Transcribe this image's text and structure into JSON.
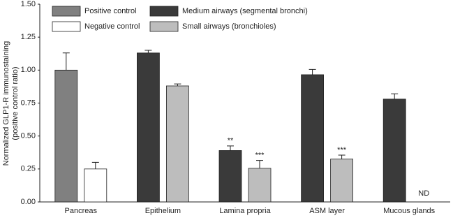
{
  "chart_data": {
    "type": "bar",
    "y_label": [
      "Normalized GLP1-R immunostaining",
      "(positive control ratio)"
    ],
    "categories": [
      "Pancreas",
      "Epithelium",
      "Lamina propria",
      "ASM layer",
      "Mucous glands"
    ],
    "series": [
      {
        "name": "Positive control",
        "color": "#808080",
        "values": [
          1.0,
          null,
          null,
          null,
          null
        ],
        "errors": [
          0.13,
          null,
          null,
          null,
          null
        ],
        "annotations": [
          null,
          null,
          null,
          null,
          null
        ]
      },
      {
        "name": "Negative control",
        "color": "#ffffff",
        "values": [
          0.25,
          null,
          null,
          null,
          null
        ],
        "errors": [
          0.05,
          null,
          null,
          null,
          null
        ],
        "annotations": [
          null,
          null,
          null,
          null,
          null
        ]
      },
      {
        "name": "Medium airways (segmental bronchi)",
        "color": "#3a3a3a",
        "values": [
          null,
          1.13,
          0.39,
          0.965,
          0.78
        ],
        "errors": [
          null,
          0.02,
          0.035,
          0.04,
          0.04
        ],
        "annotations": [
          null,
          null,
          "**",
          null,
          null
        ]
      },
      {
        "name": "Small airways (bronchioles)",
        "color": "#bdbdbd",
        "values": [
          null,
          0.88,
          0.255,
          0.325,
          null
        ],
        "errors": [
          null,
          0.015,
          0.06,
          0.03,
          null
        ],
        "annotations": [
          null,
          null,
          "***",
          "***",
          "ND"
        ]
      }
    ],
    "ylim": [
      0,
      1.5
    ],
    "yticks": [
      {
        "value": 0,
        "label": "0.00"
      },
      {
        "value": 0.25,
        "label": "0.25"
      },
      {
        "value": 0.5,
        "label": "0.50"
      },
      {
        "value": 0.75,
        "label": "0.75"
      },
      {
        "value": 1.0,
        "label": "1.00"
      },
      {
        "value": 1.25,
        "label": "1.25"
      },
      {
        "value": 1.5,
        "label": "1.50"
      }
    ],
    "grid": false
  }
}
